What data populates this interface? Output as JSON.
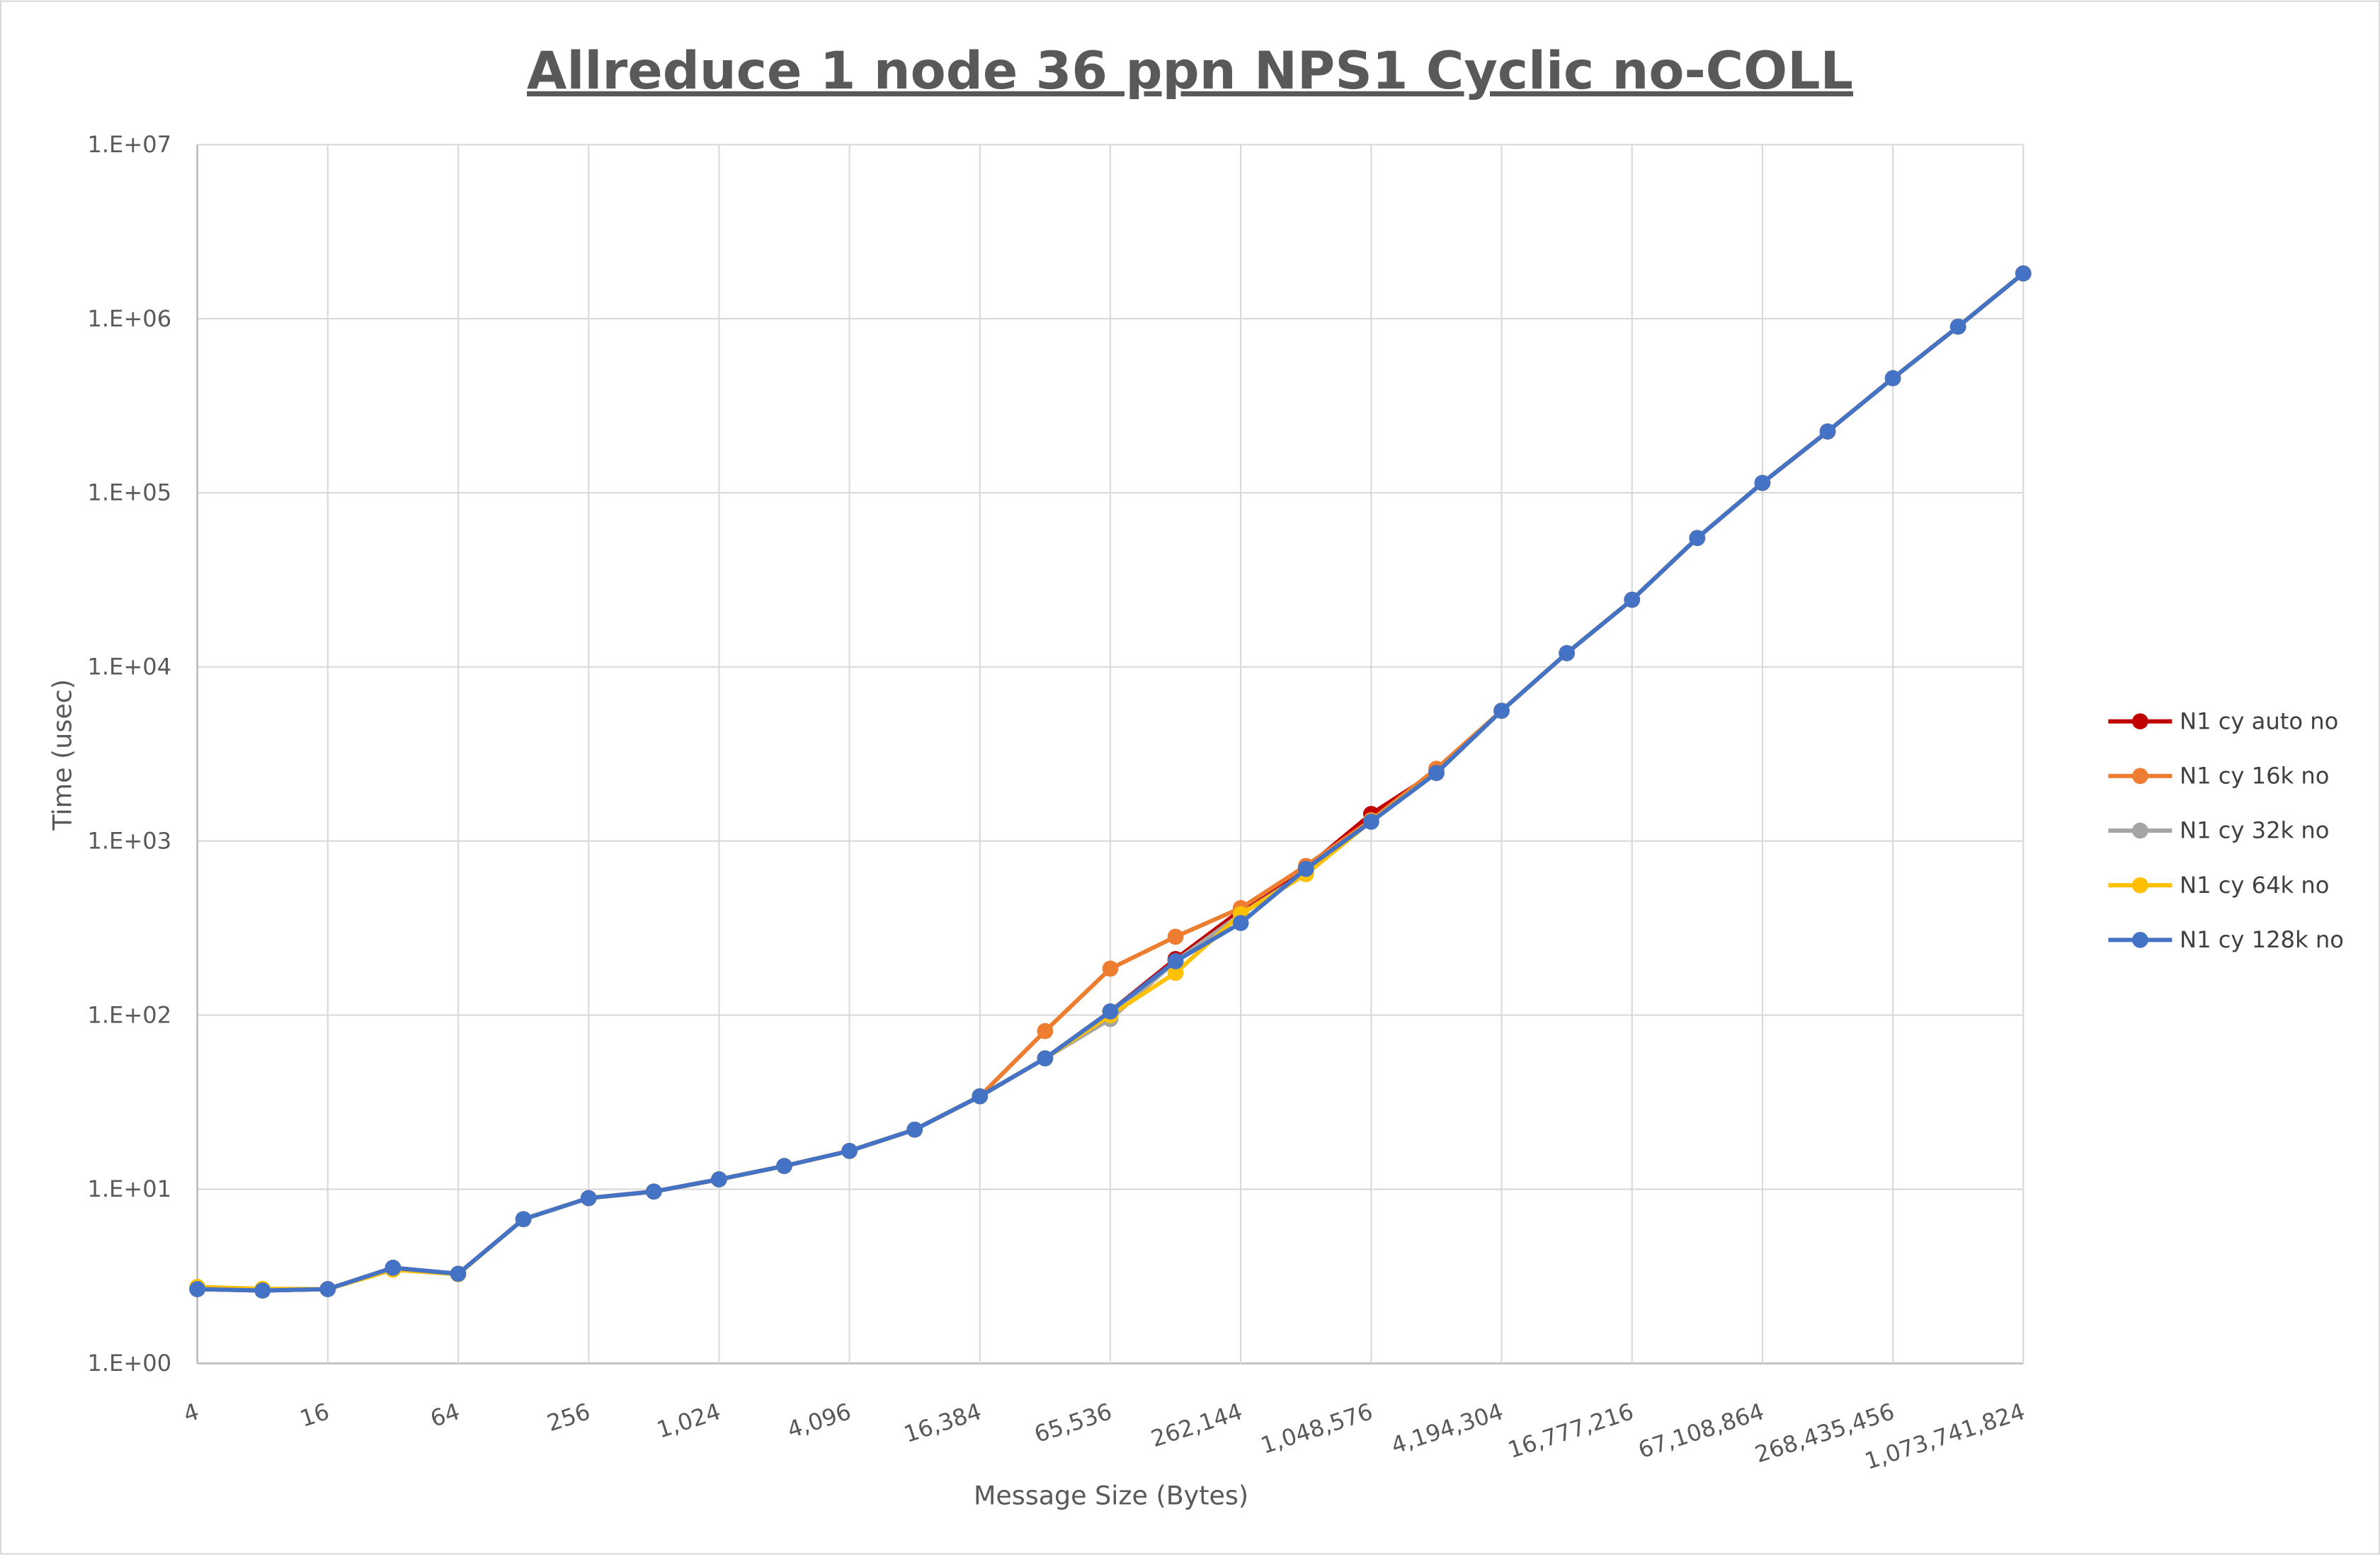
{
  "chart_data": {
    "type": "line",
    "title": "Allreduce 1 node 36 ppn NPS1 Cyclic no-COLL",
    "xlabel": "Message Size (Bytes)",
    "ylabel": "Time (usec)",
    "x_scale": "log2",
    "y_scale": "log10",
    "ylim": [
      1,
      10000000
    ],
    "grid": true,
    "legend_position": "right",
    "x": [
      4,
      8,
      16,
      32,
      64,
      128,
      256,
      512,
      1024,
      2048,
      4096,
      8192,
      16384,
      32768,
      65536,
      131072,
      262144,
      524288,
      1048576,
      2097152,
      4194304,
      8388608,
      16777216,
      33554432,
      67108864,
      134217728,
      268435456,
      536870912,
      1073741824
    ],
    "x_tick_labels": [
      "4",
      "16",
      "64",
      "256",
      "1,024",
      "4,096",
      "16,384",
      "65,536",
      "262,144",
      "1,048,576",
      "4,194,304",
      "16,777,216",
      "67,108,864",
      "268,435,456",
      "1,073,741,824"
    ],
    "y_tick_labels": [
      "1.E+00",
      "1.E+01",
      "1.E+02",
      "1.E+03",
      "1.E+04",
      "1.E+05",
      "1.E+06",
      "1.E+07"
    ],
    "series": [
      {
        "name": "N1 cy auto no",
        "color": "#c00000",
        "values": [
          2.67,
          2.62,
          2.67,
          3.54,
          3.27,
          6.73,
          8.9,
          9.7,
          11.4,
          13.6,
          16.6,
          22,
          34.2,
          56.5,
          105,
          210,
          400,
          700,
          1430,
          2500,
          5600,
          12000,
          24300,
          55000,
          114000,
          225000,
          455000,
          900000,
          1820000
        ]
      },
      {
        "name": "N1 cy 16k no",
        "color": "#ed7d31",
        "values": [
          2.67,
          2.62,
          2.67,
          3.54,
          3.27,
          6.73,
          8.9,
          9.7,
          11.4,
          13.6,
          16.6,
          22,
          34.2,
          81,
          185,
          282,
          412,
          720,
          1320,
          2600,
          5600,
          12000,
          24300,
          55000,
          114000,
          225000,
          455000,
          900000,
          1820000
        ]
      },
      {
        "name": "N1 cy 32k no",
        "color": "#a5a5a5",
        "values": [
          2.67,
          2.62,
          2.67,
          3.54,
          3.27,
          6.73,
          8.9,
          9.7,
          11.4,
          13.6,
          16.6,
          22,
          34.2,
          56.5,
          95,
          204,
          380,
          660,
          1300,
          2460,
          5600,
          12000,
          24300,
          55000,
          114000,
          225000,
          455000,
          900000,
          1820000
        ]
      },
      {
        "name": "N1 cy 64k no",
        "color": "#ffc000",
        "values": [
          2.75,
          2.68,
          2.67,
          3.45,
          3.25,
          6.73,
          8.9,
          9.7,
          11.4,
          13.6,
          16.6,
          22,
          34.2,
          56.5,
          100,
          175,
          380,
          645,
          1300,
          2460,
          5600,
          12000,
          24300,
          55000,
          114000,
          225000,
          455000,
          900000,
          1820000
        ]
      },
      {
        "name": "N1 cy 128k no",
        "color": "#4472c4",
        "values": [
          2.67,
          2.62,
          2.67,
          3.54,
          3.27,
          6.73,
          8.9,
          9.7,
          11.4,
          13.6,
          16.6,
          22,
          34.2,
          56.5,
          105,
          204,
          338,
          692,
          1290,
          2460,
          5600,
          12000,
          24300,
          55000,
          114000,
          225000,
          455000,
          900000,
          1820000
        ]
      }
    ]
  }
}
